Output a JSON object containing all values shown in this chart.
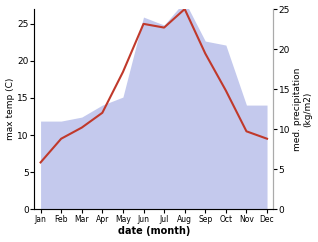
{
  "months": [
    "Jan",
    "Feb",
    "Mar",
    "Apr",
    "May",
    "Jun",
    "Jul",
    "Aug",
    "Sep",
    "Oct",
    "Nov",
    "Dec"
  ],
  "month_positions": [
    0,
    1,
    2,
    3,
    4,
    5,
    6,
    7,
    8,
    9,
    10,
    11
  ],
  "max_temp": [
    6.3,
    9.5,
    11.0,
    13.0,
    18.5,
    25.0,
    24.5,
    27.0,
    21.0,
    16.0,
    10.5,
    9.5
  ],
  "precipitation": [
    11.0,
    11.0,
    11.5,
    13.0,
    14.0,
    24.0,
    23.0,
    26.0,
    21.0,
    20.5,
    13.0,
    13.0
  ],
  "temp_color": "#c0392b",
  "precip_fill_color": "#b0b8e8",
  "precip_fill_alpha": 0.75,
  "temp_linewidth": 1.5,
  "ylabel_left": "max temp (C)",
  "ylabel_right": "med. precipitation\n(kg/m2)",
  "xlabel": "date (month)",
  "ylim_left": [
    0,
    27
  ],
  "ylim_right": [
    0,
    25
  ],
  "yticks_left": [
    0,
    5,
    10,
    15,
    20,
    25
  ],
  "yticks_right": [
    0,
    5,
    10,
    15,
    20,
    25
  ],
  "bg_color": "#ffffff"
}
